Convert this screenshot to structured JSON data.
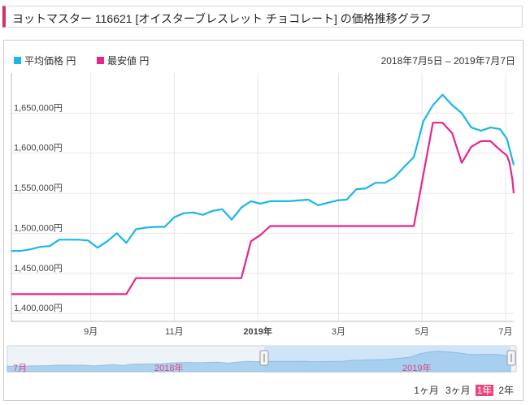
{
  "page_title": "ヨットマスター 116621 [オイスターブレスレット チョコレート] の価格推移グラフ",
  "colors": {
    "avg": "#1bb7e6",
    "min": "#e8258a",
    "title_bar": "#d0306b",
    "grid": "#e6e6e6",
    "navigator_fill": "#9dcbef"
  },
  "date_range_text": "2018年7月5日 – 2019年7月7日",
  "range_buttons": [
    {
      "label": "1ヶ月",
      "active": false
    },
    {
      "label": "3ヶ月",
      "active": false
    },
    {
      "label": "1年",
      "active": true
    },
    {
      "label": "2年",
      "active": false
    }
  ],
  "navigator": {
    "labels": [
      "7月",
      "2018年",
      "2019年"
    ]
  },
  "chart_data": {
    "type": "line",
    "x_unit": "date",
    "x_ticks": [
      "9月",
      "11月",
      "2019年",
      "3月",
      "5月",
      "7月"
    ],
    "x_tick_dates": [
      "2018-09-01",
      "2018-11-01",
      "2019-01-01",
      "2019-03-01",
      "2019-05-01",
      "2019-07-01"
    ],
    "xlim": [
      "2018-07-05",
      "2019-07-07"
    ],
    "y_ticks": [
      "1,400,000円",
      "1,450,000円",
      "1,500,000円",
      "1,550,000円",
      "1,600,000円",
      "1,650,000円"
    ],
    "ylim": [
      1390000,
      1700000
    ],
    "legend": "top-left",
    "grid": true,
    "series": [
      {
        "name": "平均価格 円",
        "color": "#1bb7e6",
        "points": [
          [
            "2018-07-05",
            1478000
          ],
          [
            "2018-07-12",
            1478000
          ],
          [
            "2018-07-19",
            1480000
          ],
          [
            "2018-07-26",
            1483000
          ],
          [
            "2018-08-02",
            1484000
          ],
          [
            "2018-08-09",
            1492000
          ],
          [
            "2018-08-16",
            1492000
          ],
          [
            "2018-08-23",
            1492000
          ],
          [
            "2018-08-30",
            1491000
          ],
          [
            "2018-09-06",
            1482000
          ],
          [
            "2018-09-13",
            1490000
          ],
          [
            "2018-09-20",
            1500000
          ],
          [
            "2018-09-27",
            1488000
          ],
          [
            "2018-10-04",
            1505000
          ],
          [
            "2018-10-11",
            1507000
          ],
          [
            "2018-10-18",
            1508000
          ],
          [
            "2018-10-25",
            1508000
          ],
          [
            "2018-11-01",
            1520000
          ],
          [
            "2018-11-08",
            1525000
          ],
          [
            "2018-11-15",
            1526000
          ],
          [
            "2018-11-22",
            1523000
          ],
          [
            "2018-11-29",
            1528000
          ],
          [
            "2018-12-06",
            1530000
          ],
          [
            "2018-12-13",
            1517000
          ],
          [
            "2018-12-20",
            1532000
          ],
          [
            "2018-12-27",
            1540000
          ],
          [
            "2019-01-03",
            1537000
          ],
          [
            "2019-01-10",
            1540000
          ],
          [
            "2019-01-17",
            1540000
          ],
          [
            "2019-01-24",
            1540000
          ],
          [
            "2019-01-31",
            1541000
          ],
          [
            "2019-02-07",
            1542000
          ],
          [
            "2019-02-14",
            1535000
          ],
          [
            "2019-02-21",
            1538000
          ],
          [
            "2019-02-28",
            1541000
          ],
          [
            "2019-03-07",
            1542000
          ],
          [
            "2019-03-14",
            1555000
          ],
          [
            "2019-03-21",
            1556000
          ],
          [
            "2019-03-28",
            1563000
          ],
          [
            "2019-04-04",
            1563000
          ],
          [
            "2019-04-11",
            1570000
          ],
          [
            "2019-04-18",
            1583000
          ],
          [
            "2019-04-25",
            1595000
          ],
          [
            "2019-05-02",
            1640000
          ],
          [
            "2019-05-09",
            1660000
          ],
          [
            "2019-05-16",
            1673000
          ],
          [
            "2019-05-23",
            1660000
          ],
          [
            "2019-05-30",
            1650000
          ],
          [
            "2019-06-06",
            1632000
          ],
          [
            "2019-06-13",
            1628000
          ],
          [
            "2019-06-20",
            1632000
          ],
          [
            "2019-06-27",
            1630000
          ],
          [
            "2019-07-02",
            1618000
          ],
          [
            "2019-07-07",
            1585000
          ]
        ]
      },
      {
        "name": "最安値 円",
        "color": "#e8258a",
        "points": [
          [
            "2018-07-05",
            1424000
          ],
          [
            "2018-09-27",
            1424000
          ],
          [
            "2018-10-04",
            1444000
          ],
          [
            "2018-12-20",
            1444000
          ],
          [
            "2018-12-27",
            1490000
          ],
          [
            "2019-01-03",
            1498000
          ],
          [
            "2019-01-10",
            1509000
          ],
          [
            "2019-04-25",
            1509000
          ],
          [
            "2019-05-09",
            1638000
          ],
          [
            "2019-05-16",
            1638000
          ],
          [
            "2019-05-23",
            1625000
          ],
          [
            "2019-05-30",
            1588000
          ],
          [
            "2019-06-06",
            1608000
          ],
          [
            "2019-06-13",
            1615000
          ],
          [
            "2019-06-20",
            1615000
          ],
          [
            "2019-06-27",
            1604000
          ],
          [
            "2019-07-02",
            1597000
          ],
          [
            "2019-07-04",
            1588000
          ],
          [
            "2019-07-06",
            1567000
          ],
          [
            "2019-07-07",
            1550000
          ]
        ]
      }
    ]
  }
}
